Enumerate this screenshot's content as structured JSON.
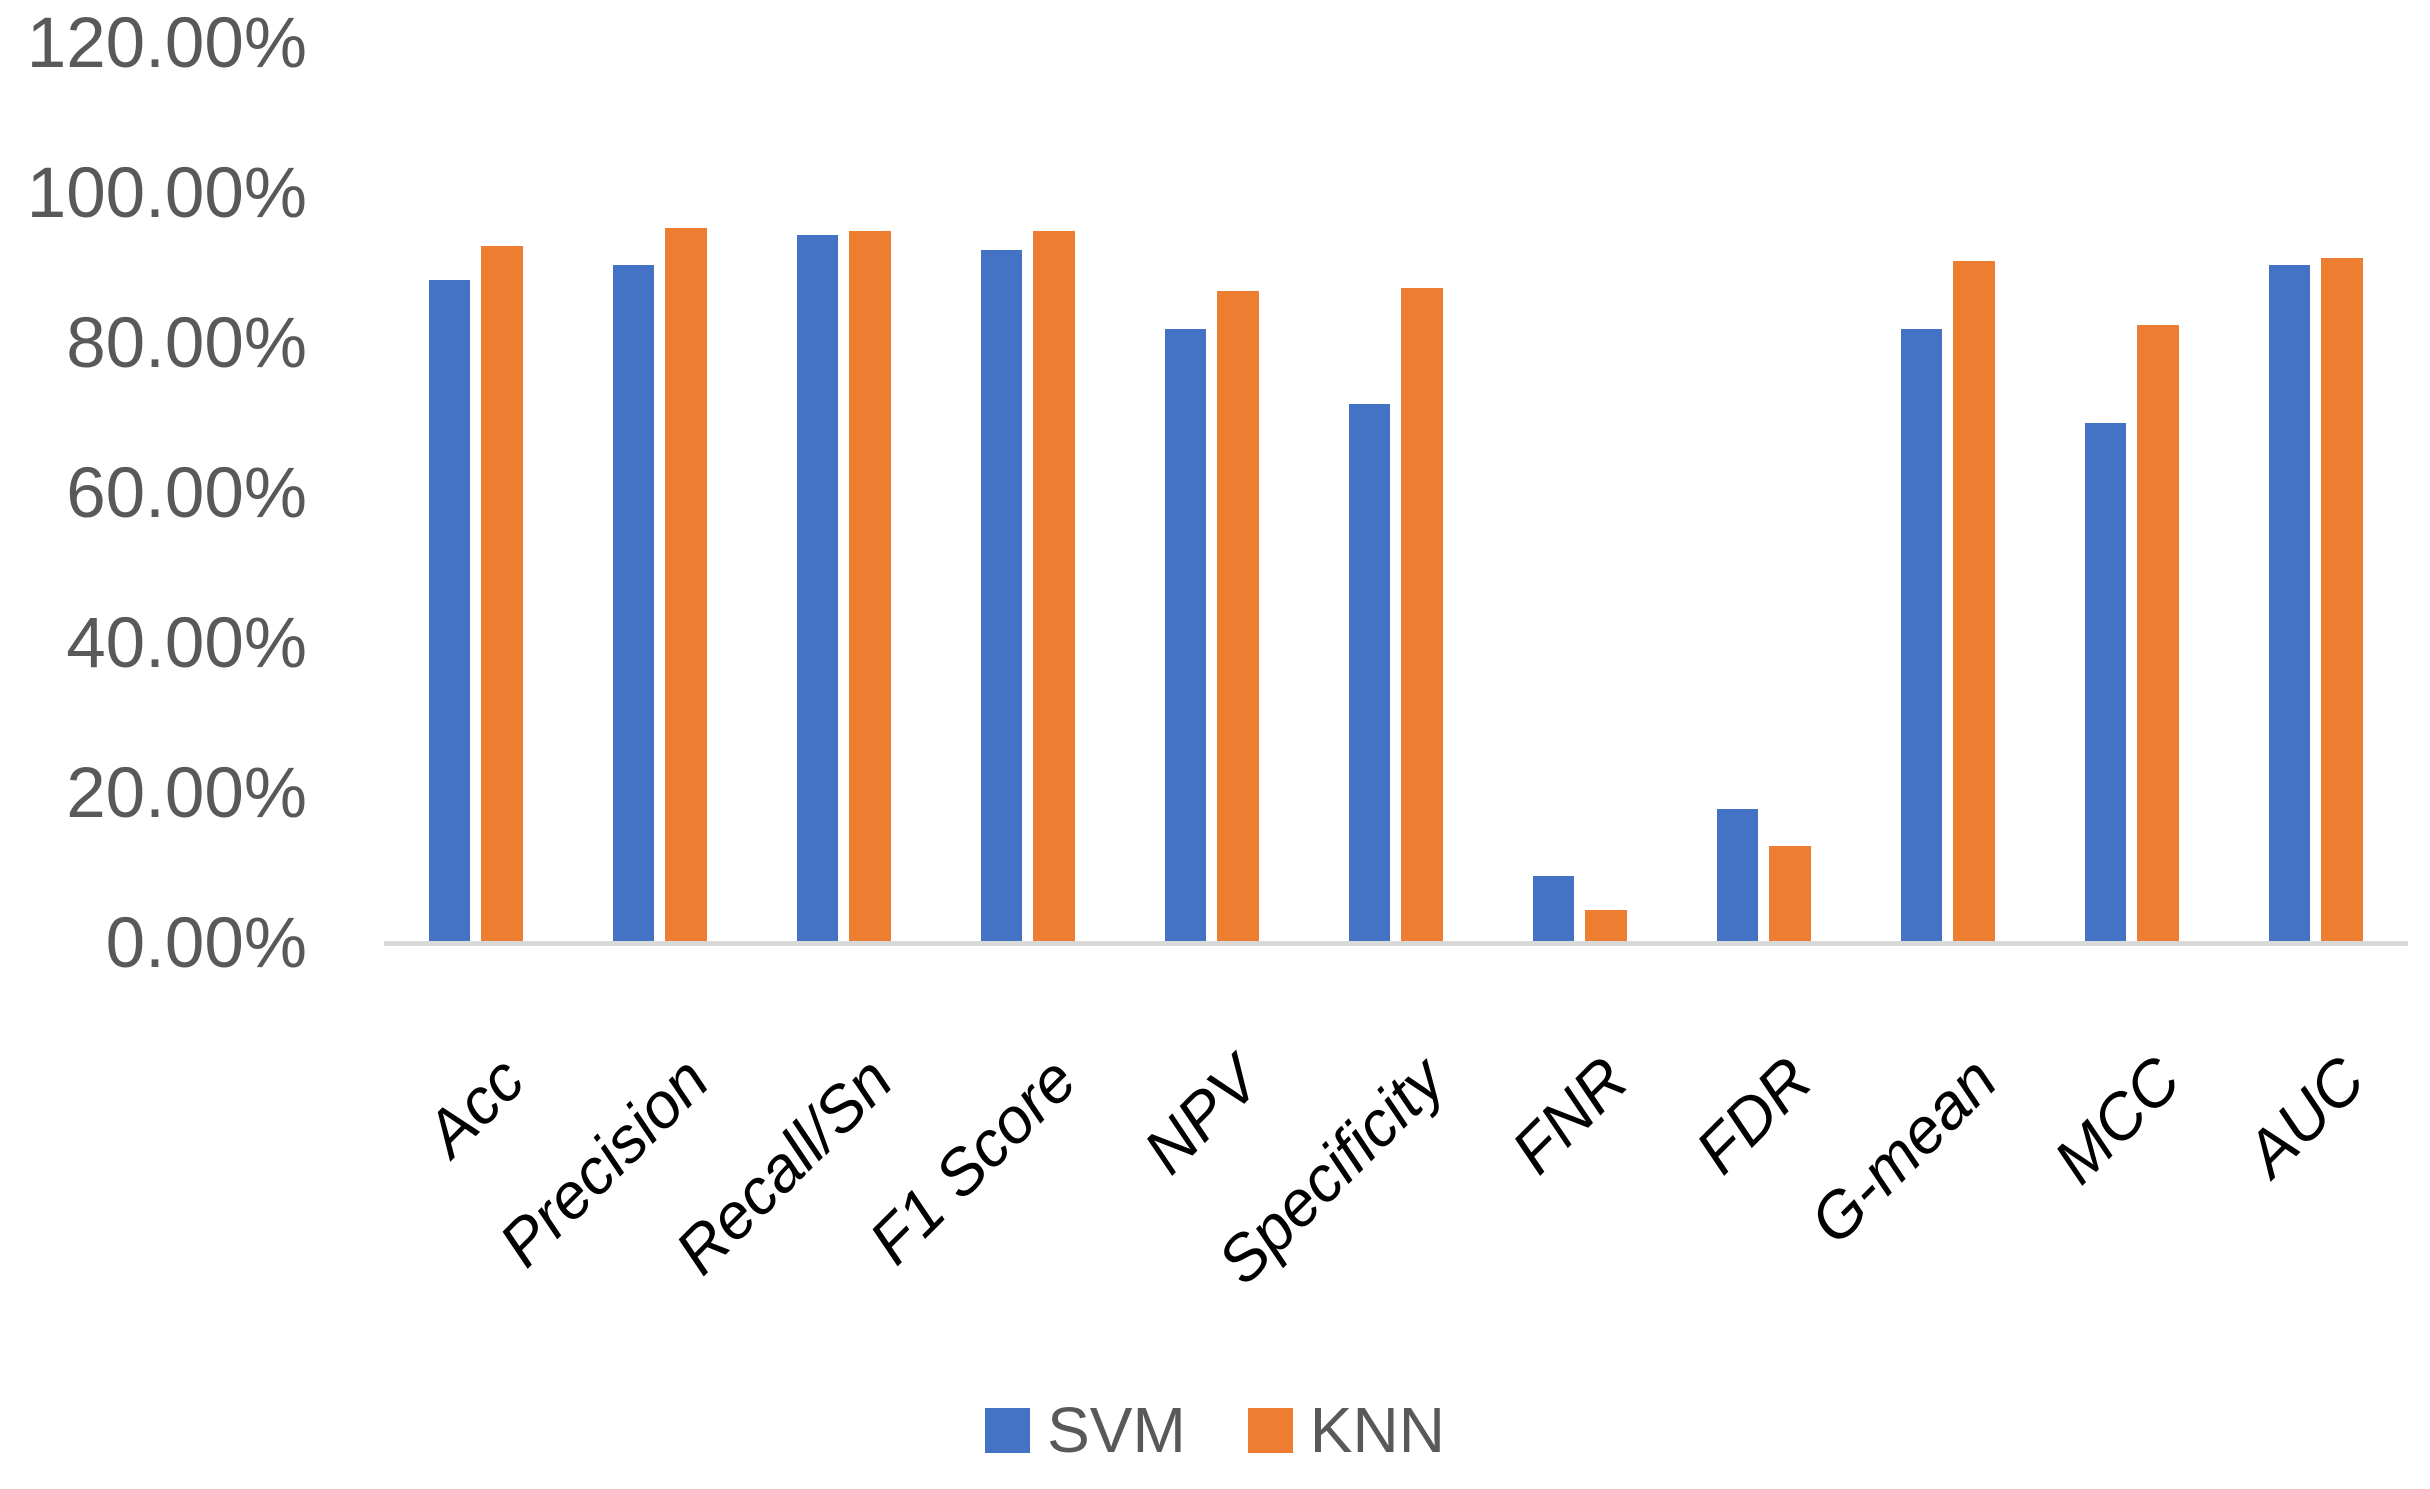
{
  "chart_data": {
    "type": "bar",
    "title": "",
    "xlabel": "",
    "ylabel": "",
    "categories": [
      "Acc",
      "Precision",
      "Recall/Sn",
      "F1 Score",
      "NPV",
      "Specificity",
      "FNR",
      "FDR",
      "G-mean",
      "MCC",
      "AUC"
    ],
    "series": [
      {
        "name": "SVM",
        "color": "#4472C4",
        "values": [
          88.5,
          90.5,
          94.5,
          92.5,
          82.0,
          72.0,
          9.0,
          18.0,
          82.0,
          69.5,
          90.5
        ]
      },
      {
        "name": "KNN",
        "color": "#ED7D31",
        "values": [
          93.0,
          95.5,
          95.0,
          95.0,
          87.0,
          87.5,
          4.5,
          13.0,
          91.0,
          82.5,
          91.5
        ]
      }
    ],
    "value_unit": "%",
    "ylim": [
      0,
      120
    ],
    "y_ticks": [
      {
        "value": 0,
        "label": "0.00%"
      },
      {
        "value": 20,
        "label": "20.00%"
      },
      {
        "value": 40,
        "label": "40.00%"
      },
      {
        "value": 60,
        "label": "60.00%"
      },
      {
        "value": 80,
        "label": "80.00%"
      },
      {
        "value": 100,
        "label": "100.00%"
      },
      {
        "value": 120,
        "label": "120.00%"
      }
    ],
    "grid": false,
    "legend_position": "bottom",
    "axis_line_color": "#D9D9D9",
    "tick_label_color": "#595959",
    "category_label_color": "#000000",
    "category_label_style": "italic, rotated 45deg"
  }
}
